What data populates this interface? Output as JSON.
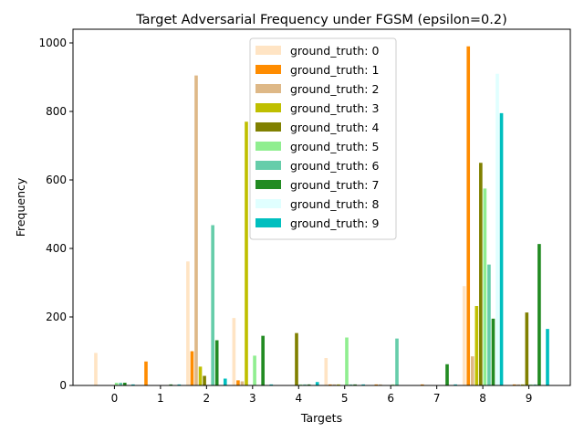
{
  "chart_data": {
    "type": "bar",
    "title": "Target Adversarial Frequency under FGSM (epsilon=0.2)",
    "xlabel": "Targets",
    "ylabel": "Frequency",
    "categories": [
      "0",
      "1",
      "2",
      "3",
      "4",
      "5",
      "6",
      "7",
      "8",
      "9"
    ],
    "ylim": [
      0,
      1040
    ],
    "yticks": [
      0,
      200,
      400,
      600,
      800,
      1000
    ],
    "grid": false,
    "legend_position": "top-center",
    "series": [
      {
        "name": "ground_truth: 0",
        "color": "#ffe4c4",
        "values": [
          95,
          0,
          362,
          197,
          0,
          80,
          0,
          0,
          290,
          0
        ]
      },
      {
        "name": "ground_truth: 1",
        "color": "#ff8c00",
        "values": [
          0,
          70,
          100,
          15,
          0,
          3,
          3,
          3,
          990,
          3
        ]
      },
      {
        "name": "ground_truth: 2",
        "color": "#deb887",
        "values": [
          0,
          0,
          905,
          12,
          0,
          3,
          3,
          0,
          85,
          3
        ]
      },
      {
        "name": "ground_truth: 3",
        "color": "#bfbf00",
        "values": [
          0,
          0,
          55,
          770,
          0,
          3,
          0,
          0,
          232,
          3
        ]
      },
      {
        "name": "ground_truth: 4",
        "color": "#808000",
        "values": [
          0,
          0,
          28,
          0,
          153,
          0,
          0,
          0,
          650,
          213
        ]
      },
      {
        "name": "ground_truth: 5",
        "color": "#90ee90",
        "values": [
          8,
          0,
          0,
          87,
          3,
          140,
          3,
          0,
          575,
          3
        ]
      },
      {
        "name": "ground_truth: 6",
        "color": "#66cdaa",
        "values": [
          8,
          0,
          468,
          0,
          3,
          3,
          137,
          0,
          353,
          3
        ]
      },
      {
        "name": "ground_truth: 7",
        "color": "#228b22",
        "values": [
          8,
          3,
          132,
          145,
          3,
          3,
          0,
          62,
          195,
          413
        ]
      },
      {
        "name": "ground_truth: 8",
        "color": "#e0ffff",
        "values": [
          0,
          0,
          0,
          0,
          0,
          0,
          0,
          0,
          910,
          0
        ]
      },
      {
        "name": "ground_truth: 9",
        "color": "#00bfbf",
        "values": [
          3,
          3,
          20,
          3,
          10,
          3,
          0,
          3,
          795,
          165
        ]
      }
    ]
  }
}
